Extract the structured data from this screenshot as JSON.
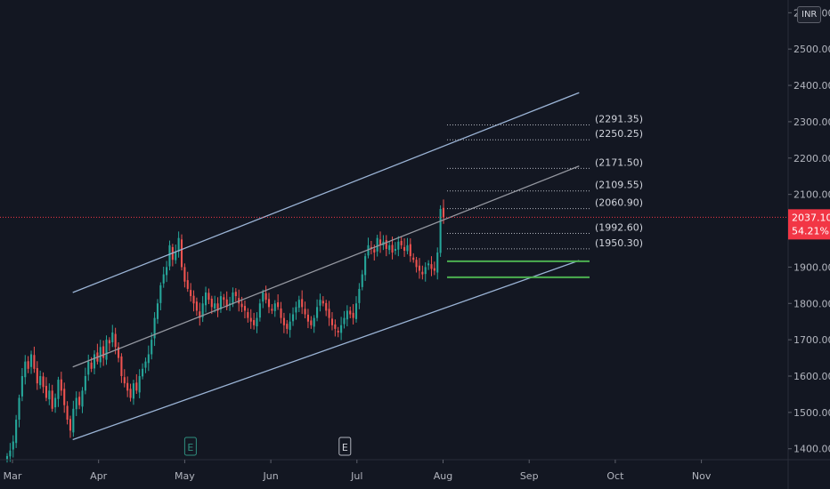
{
  "currency_label": "INR",
  "colors": {
    "background": "#131722",
    "up": "#26a69a",
    "down": "#ef5350",
    "channel": "#9bb4d6",
    "midline": "#9598a1",
    "support": "#4caf50",
    "current_price_bg": "#f23645"
  },
  "chart_data": {
    "type": "candlestick",
    "title": "",
    "x_ticks": [
      "Mar",
      "Apr",
      "May",
      "Jun",
      "Jul",
      "Aug",
      "Sep",
      "Oct",
      "Nov"
    ],
    "y_ticks": [
      "1400.00",
      "1500.00",
      "1600.00",
      "1700.00",
      "1800.00",
      "1900.00",
      "2000.00",
      "2100.00",
      "2200.00",
      "2300.00",
      "2400.00",
      "2500.00",
      "2600.00"
    ],
    "y_range": [
      1370,
      2635
    ],
    "current_price": "2037.10",
    "change_percent": "54.21%",
    "price_levels": [
      "2291.35",
      "2250.25",
      "2171.50",
      "2109.55",
      "2060.90",
      "1992.60",
      "1950.30"
    ],
    "support_levels": [
      1916,
      1872
    ],
    "earnings_markers": [
      {
        "label": "E",
        "month": "May"
      },
      {
        "label": "E",
        "month": "Jul"
      }
    ],
    "channel": {
      "upper": [
        [
          0.7,
          1830
        ],
        [
          6.58,
          2380
        ]
      ],
      "middle": [
        [
          0.7,
          1625
        ],
        [
          6.58,
          2178
        ]
      ],
      "lower": [
        [
          0.7,
          1425
        ],
        [
          6.58,
          1918
        ]
      ]
    },
    "closes": [
      1380,
      1395,
      1420,
      1480,
      1540,
      1600,
      1640,
      1620,
      1660,
      1620,
      1580,
      1600,
      1570,
      1540,
      1560,
      1510,
      1540,
      1590,
      1560,
      1520,
      1480,
      1450,
      1510,
      1540,
      1520,
      1560,
      1600,
      1640,
      1620,
      1660,
      1640,
      1680,
      1650,
      1700,
      1690,
      1720,
      1680,
      1650,
      1600,
      1580,
      1560,
      1540,
      1580,
      1560,
      1600,
      1620,
      1640,
      1660,
      1700,
      1760,
      1800,
      1850,
      1880,
      1900,
      1960,
      1920,
      1940,
      1980,
      1900,
      1860,
      1840,
      1820,
      1800,
      1780,
      1760,
      1800,
      1830,
      1810,
      1790,
      1800,
      1780,
      1820,
      1810,
      1790,
      1800,
      1830,
      1820,
      1800,
      1790,
      1780,
      1760,
      1750,
      1740,
      1760,
      1800,
      1830,
      1810,
      1790,
      1780,
      1800,
      1790,
      1760,
      1740,
      1730,
      1750,
      1770,
      1790,
      1810,
      1790,
      1770,
      1750,
      1740,
      1760,
      1790,
      1810,
      1800,
      1780,
      1760,
      1740,
      1730,
      1720,
      1740,
      1760,
      1780,
      1770,
      1760,
      1800,
      1840,
      1880,
      1930,
      1960,
      1950,
      1940,
      1980,
      1960,
      1970,
      1950,
      1960,
      1940,
      1950,
      1970,
      1960,
      1945,
      1960,
      1930,
      1920,
      1900,
      1890,
      1880,
      1900,
      1910,
      1895,
      1890,
      1940,
      2060,
      2037
    ]
  }
}
